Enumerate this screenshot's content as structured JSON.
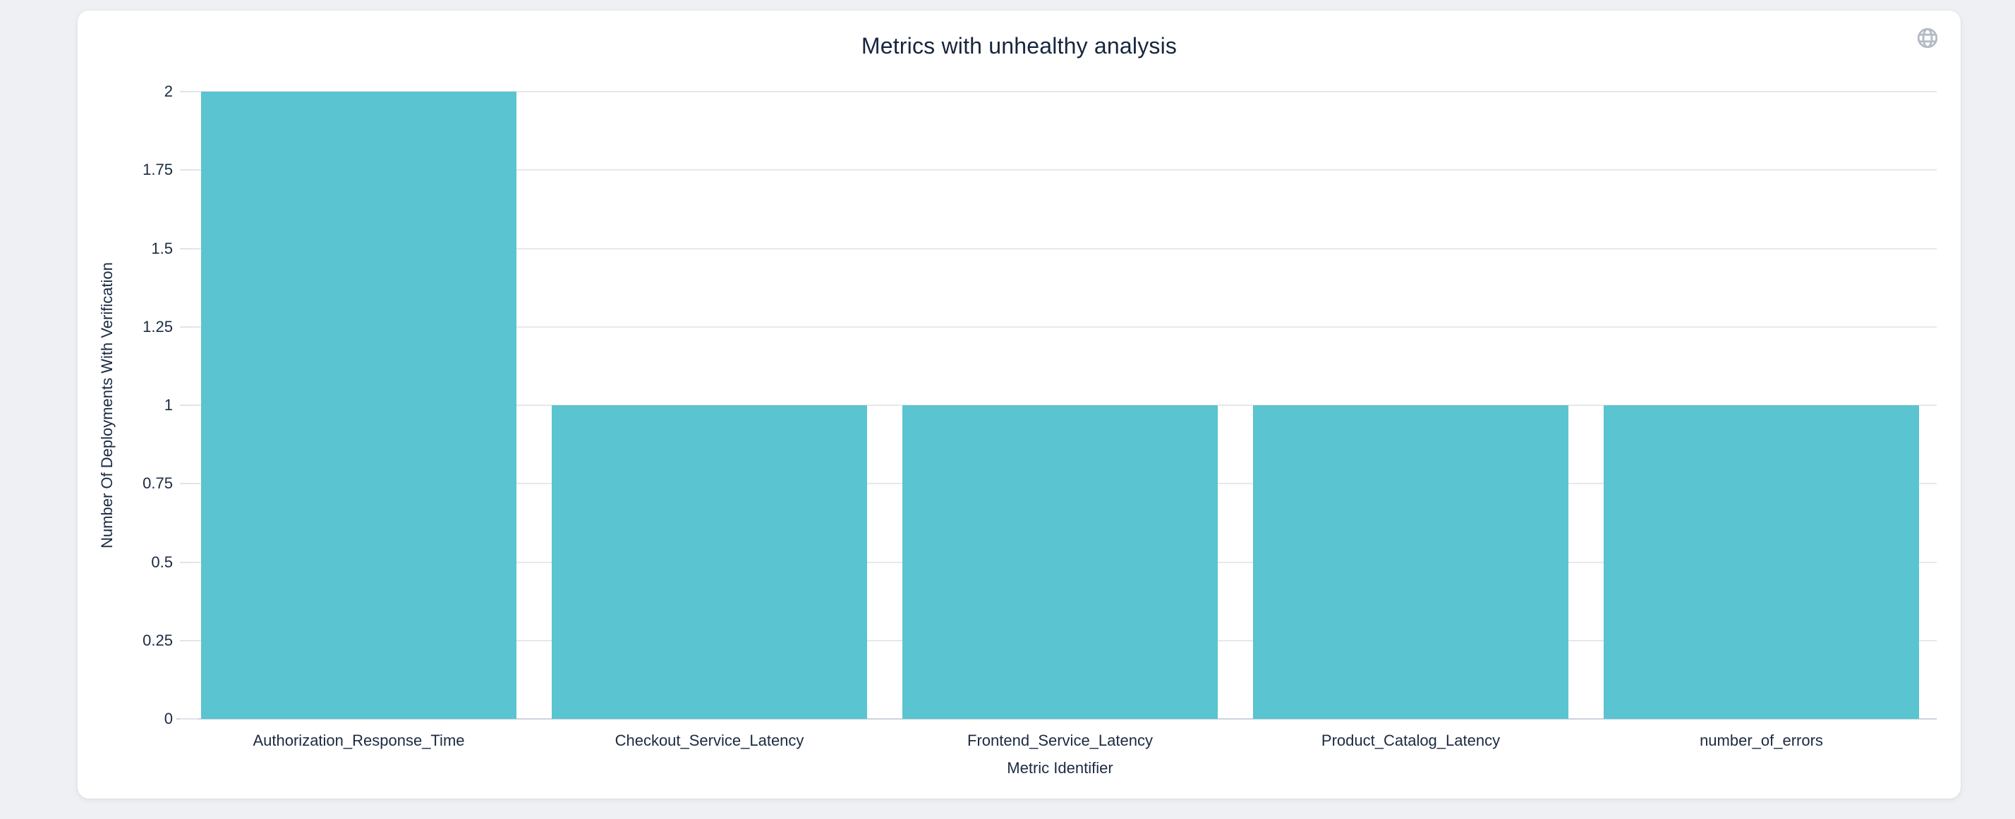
{
  "header": {
    "title": "Metrics with unhealthy analysis",
    "icon": "globe"
  },
  "chart_data": {
    "type": "bar",
    "title": "Metrics with unhealthy analysis",
    "categories": [
      "Authorization_Response_Time",
      "Checkout_Service_Latency",
      "Frontend_Service_Latency",
      "Product_Catalog_Latency",
      "number_of_errors"
    ],
    "values": [
      2,
      1,
      1,
      1,
      1
    ],
    "xlabel": "Metric Identifier",
    "ylabel": "Number Of Deployments With Verification",
    "ylim": [
      0,
      2
    ],
    "yticks": [
      0,
      0.25,
      0.5,
      0.75,
      1,
      1.25,
      1.5,
      1.75,
      2
    ],
    "grid": "horizontal",
    "legend": "none",
    "bar_color": "#5ac4d0"
  },
  "colors": {
    "page_background": "#eef0f4",
    "card_background": "#ffffff",
    "title": "#17263d",
    "axis_label": "#1b2a41",
    "gridline": "#e7e8ea",
    "tick_mark": "#e2e4e9",
    "axis_line": "#ccd2de",
    "globe_icon": "#b3bac6",
    "bar": "#5ac4d0"
  }
}
